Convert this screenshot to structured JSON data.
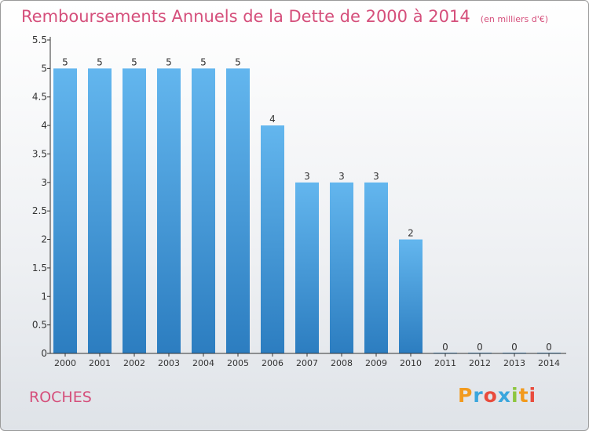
{
  "header": {
    "title": "Remboursements Annuels de la Dette de 2000 à 2014",
    "unit": "(en milliers d'€)"
  },
  "commune": "ROCHES",
  "logo": {
    "text": "Proxiti",
    "letters": [
      {
        "ch": "P",
        "color": "#f29a1d"
      },
      {
        "ch": "r",
        "color": "#3aa6dd"
      },
      {
        "ch": "o",
        "color": "#e94c3d"
      },
      {
        "ch": "x",
        "color": "#3aa6dd"
      },
      {
        "ch": "i",
        "color": "#8dc63f"
      },
      {
        "ch": "t",
        "color": "#f29a1d"
      },
      {
        "ch": "i",
        "color": "#e94c3d"
      }
    ]
  },
  "colors": {
    "bar_top": "#63b6ee",
    "bar_bottom": "#2c7dc0",
    "axis": "#333333",
    "title": "#d54f7b"
  },
  "chart_data": {
    "type": "bar",
    "title": "Remboursements Annuels de la Dette de 2000 à 2014",
    "xlabel": "",
    "ylabel": "",
    "categories": [
      "2000",
      "2001",
      "2002",
      "2003",
      "2004",
      "2005",
      "2006",
      "2007",
      "2008",
      "2009",
      "2010",
      "2011",
      "2012",
      "2013",
      "2014"
    ],
    "values": [
      5,
      5,
      5,
      5,
      5,
      5,
      4,
      3,
      3,
      3,
      2,
      0,
      0,
      0,
      0
    ],
    "data_labels": [
      "5",
      "5",
      "5",
      "5",
      "5",
      "5",
      "4",
      "3",
      "3",
      "3",
      "2",
      "0",
      "0",
      "0",
      "0"
    ],
    "yticks": [
      "0",
      "0.5",
      "1",
      "1.5",
      "2",
      "2.5",
      "3",
      "3.5",
      "4",
      "4.5",
      "5",
      "5.5"
    ],
    "ylim": [
      0,
      5.5
    ],
    "grid": false,
    "legend": "none"
  }
}
